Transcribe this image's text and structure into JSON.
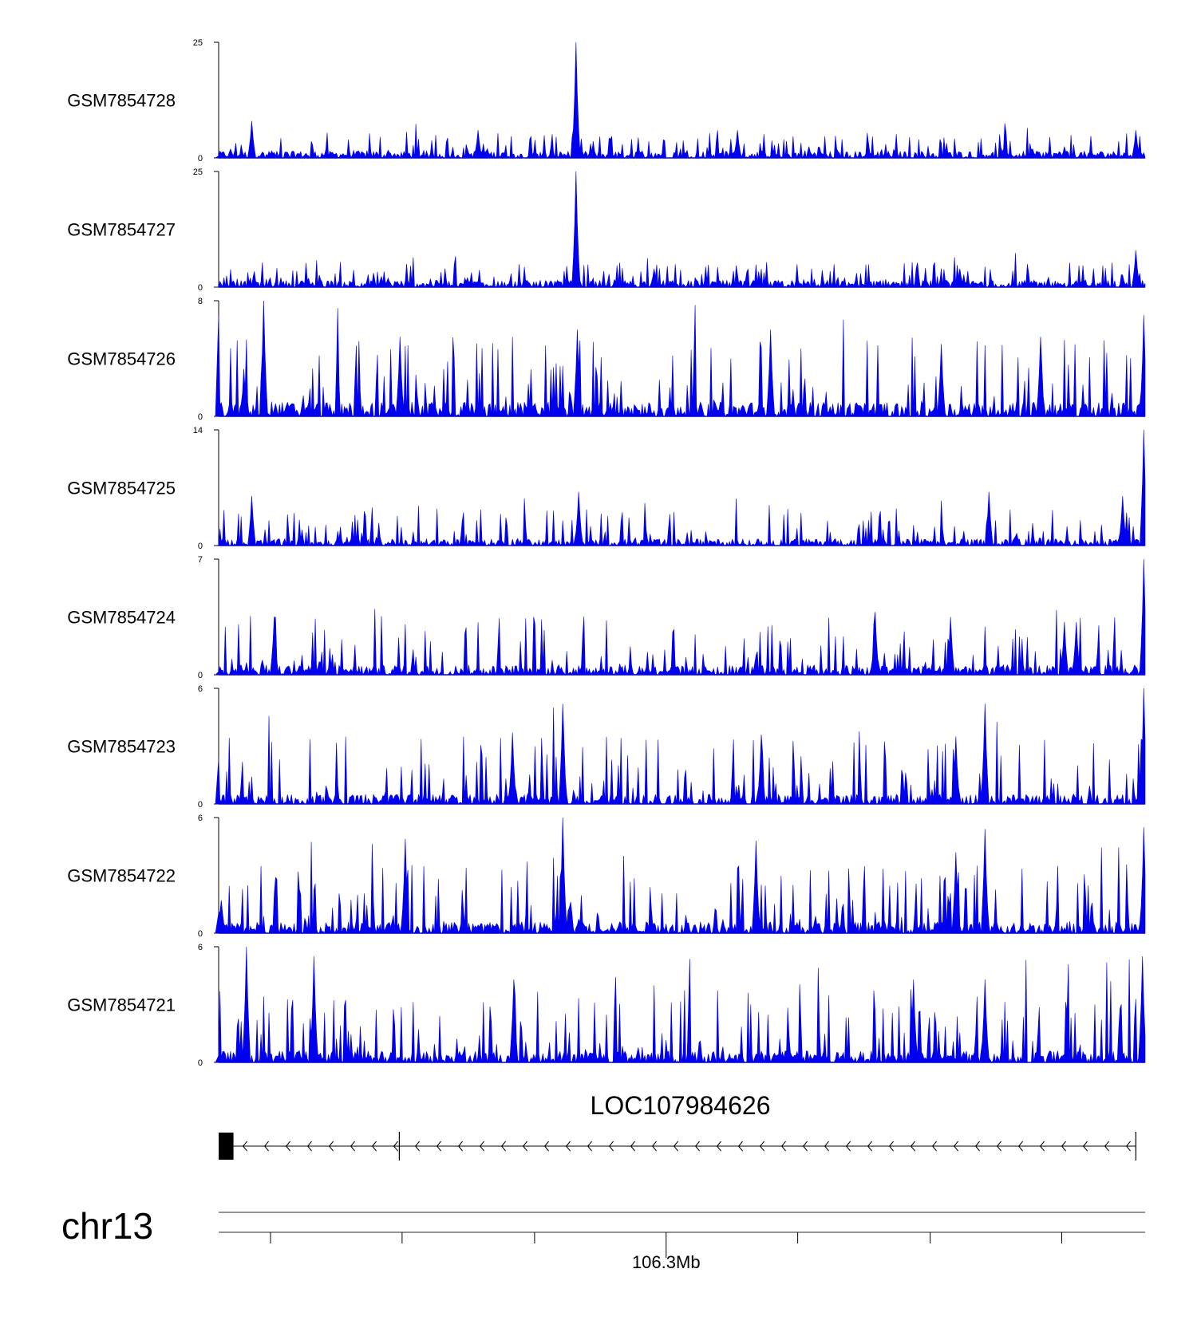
{
  "chart_data": {
    "type": "area",
    "color": "#0000ee",
    "tracks": [
      {
        "name": "GSM7854728",
        "ymin": 0,
        "ymax": 25,
        "peaks": [
          [
            0.385,
            25
          ],
          [
            0.035,
            8
          ],
          [
            0.28,
            6
          ],
          [
            0.56,
            6
          ],
          [
            0.99,
            6
          ]
        ],
        "base": 1.5,
        "noise": 4.0
      },
      {
        "name": "GSM7854727",
        "ymin": 0,
        "ymax": 25,
        "peaks": [
          [
            0.385,
            25
          ],
          [
            0.99,
            8
          ],
          [
            0.47,
            4
          ],
          [
            0.8,
            4
          ]
        ],
        "base": 1.5,
        "noise": 4.0
      },
      {
        "name": "GSM7854726",
        "ymin": 0,
        "ymax": 8,
        "peaks": [
          [
            0.048,
            8
          ],
          [
            0.999,
            7
          ],
          [
            0.196,
            5.5
          ],
          [
            0.387,
            6
          ],
          [
            0.595,
            6
          ],
          [
            0.78,
            5
          ],
          [
            0.887,
            5.5
          ]
        ],
        "base": 1.0,
        "noise": 4.5
      },
      {
        "name": "GSM7854725",
        "ymin": 0,
        "ymax": 14,
        "peaks": [
          [
            0.999,
            14
          ],
          [
            0.036,
            6
          ],
          [
            0.388,
            6.5
          ],
          [
            0.831,
            6.5
          ],
          [
            0.975,
            6
          ]
        ],
        "base": 0.8,
        "noise": 3.8
      },
      {
        "name": "GSM7854724",
        "ymin": 0,
        "ymax": 7,
        "peaks": [
          [
            0.998,
            7
          ],
          [
            0.06,
            3.5
          ],
          [
            0.708,
            3.8
          ],
          [
            0.79,
            3.5
          ],
          [
            0.913,
            3.2
          ],
          [
            0.925,
            3.2
          ]
        ],
        "base": 0.6,
        "noise": 3.0
      },
      {
        "name": "GSM7854723",
        "ymin": 0,
        "ymax": 6,
        "peaks": [
          [
            0.999,
            6
          ],
          [
            0.372,
            5.2
          ],
          [
            0.317,
            3.7
          ],
          [
            0.586,
            3.6
          ],
          [
            0.827,
            5.2
          ],
          [
            0.795,
            3.5
          ]
        ],
        "base": 0.5,
        "noise": 3.0
      },
      {
        "name": "GSM7854722",
        "ymin": 0,
        "ymax": 6,
        "peaks": [
          [
            0.999,
            5.5
          ],
          [
            0.372,
            6
          ],
          [
            0.202,
            4.9
          ],
          [
            0.827,
            5.4
          ],
          [
            0.58,
            4.8
          ],
          [
            0.795,
            4.2
          ]
        ],
        "base": 0.6,
        "noise": 3.0
      },
      {
        "name": "GSM7854721",
        "ymin": 0,
        "ymax": 6,
        "peaks": [
          [
            0.03,
            6
          ],
          [
            0.103,
            5.5
          ],
          [
            0.997,
            5.5
          ],
          [
            0.319,
            4.3
          ],
          [
            0.827,
            4.3
          ],
          [
            0.75,
            4.3
          ]
        ],
        "base": 0.6,
        "noise": 3.2
      }
    ],
    "gene": {
      "name": "LOC107984626",
      "strand": "-",
      "exons": [
        [
          0.0,
          0.016
        ]
      ],
      "breaks": [
        0.195,
        0.99
      ],
      "line_from": 0.016,
      "line_to": 0.99
    },
    "axis": {
      "chrom": "chr13",
      "ticks": [
        0.056,
        0.198,
        0.341,
        0.483,
        0.625,
        0.768,
        0.91
      ],
      "labeled_tick": 0.483,
      "label": "106.3Mb"
    }
  }
}
